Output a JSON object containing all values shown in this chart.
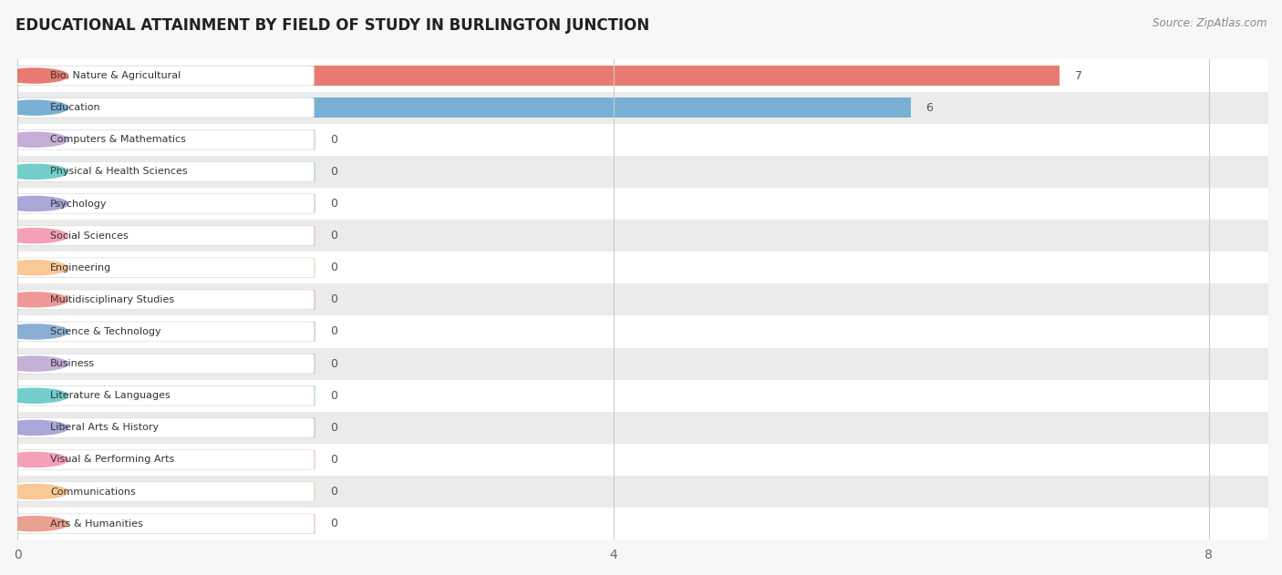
{
  "title": "EDUCATIONAL ATTAINMENT BY FIELD OF STUDY IN BURLINGTON JUNCTION",
  "source": "Source: ZipAtlas.com",
  "categories": [
    "Bio, Nature & Agricultural",
    "Education",
    "Computers & Mathematics",
    "Physical & Health Sciences",
    "Psychology",
    "Social Sciences",
    "Engineering",
    "Multidisciplinary Studies",
    "Science & Technology",
    "Business",
    "Literature & Languages",
    "Liberal Arts & History",
    "Visual & Performing Arts",
    "Communications",
    "Arts & Humanities"
  ],
  "values": [
    7,
    6,
    0,
    0,
    0,
    0,
    0,
    0,
    0,
    0,
    0,
    0,
    0,
    0,
    0
  ],
  "bar_colors": [
    "#E87A72",
    "#7AAFD4",
    "#C4AED8",
    "#72CECA",
    "#A8A8D8",
    "#F4A0B8",
    "#F9C896",
    "#F09898",
    "#8AAED4",
    "#C4B0D8",
    "#72CECA",
    "#A8A8D8",
    "#F4A0B8",
    "#F9C896",
    "#EAA090"
  ],
  "xlim": [
    0,
    8.4
  ],
  "xticks": [
    0,
    4,
    8
  ],
  "background_color": "#F7F7F7",
  "title_fontsize": 12,
  "source_fontsize": 8.5,
  "label_bar_value": 2.0
}
